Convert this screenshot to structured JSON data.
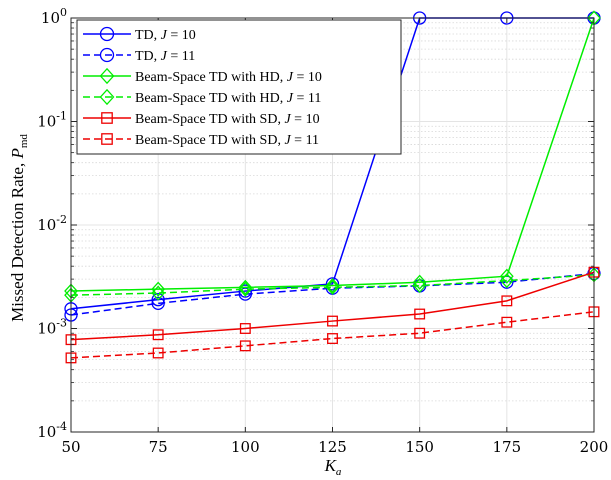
{
  "chart_data": {
    "type": "line",
    "xlabel_main": "K",
    "xlabel_sub": "a",
    "ylabel_main": "Missed Detection Rate, ",
    "ylabel_var": "P",
    "ylabel_sub": "md",
    "x": [
      50,
      75,
      100,
      125,
      150,
      175,
      200
    ],
    "xlim": [
      50,
      200
    ],
    "ylim": [
      0.0001,
      1
    ],
    "yscale": "log",
    "x_ticks": [
      "50",
      "75",
      "100",
      "125",
      "150",
      "175",
      "200"
    ],
    "y_ticks": [
      {
        "base": "10",
        "exp": "0"
      },
      {
        "base": "10",
        "exp": "-1"
      },
      {
        "base": "10",
        "exp": "-2"
      },
      {
        "base": "10",
        "exp": "-3"
      },
      {
        "base": "10",
        "exp": "-4"
      }
    ],
    "grid": true,
    "legend_position": "top-left",
    "series": [
      {
        "name": "TD, ",
        "name_var": "J",
        "name_val": " = 10",
        "color": "#0000ff",
        "dash": "solid",
        "marker": "circle",
        "values": [
          0.00155,
          0.0019,
          0.0023,
          0.0027,
          1.0,
          1.0,
          1.0
        ]
      },
      {
        "name": "TD, ",
        "name_var": "J",
        "name_val": " = 11",
        "color": "#0000ff",
        "dash": "dashed",
        "marker": "circle",
        "values": [
          0.00135,
          0.00175,
          0.00215,
          0.00245,
          0.00258,
          0.0028,
          0.0034
        ]
      },
      {
        "name": "Beam-Space TD with HD, ",
        "name_var": "J",
        "name_val": " = 10",
        "color": "#00ee00",
        "dash": "solid",
        "marker": "diamond",
        "values": [
          0.0023,
          0.0024,
          0.0025,
          0.0026,
          0.0028,
          0.0032,
          1.0
        ]
      },
      {
        "name": "Beam-Space TD with HD, ",
        "name_var": "J",
        "name_val": " = 11",
        "color": "#00ee00",
        "dash": "dashed",
        "marker": "diamond",
        "values": [
          0.0021,
          0.0022,
          0.0024,
          0.0025,
          0.0026,
          0.0029,
          0.0033
        ]
      },
      {
        "name": "Beam-Space TD with SD, ",
        "name_var": "J",
        "name_val": " = 10",
        "color": "#ee0000",
        "dash": "solid",
        "marker": "square",
        "values": [
          0.00078,
          0.00087,
          0.001,
          0.00118,
          0.00138,
          0.00185,
          0.0035
        ]
      },
      {
        "name": "Beam-Space TD with SD, ",
        "name_var": "J",
        "name_val": " = 11",
        "color": "#ee0000",
        "dash": "dashed",
        "marker": "square",
        "values": [
          0.00052,
          0.00058,
          0.00068,
          0.0008,
          0.0009,
          0.00115,
          0.00145
        ]
      }
    ]
  }
}
